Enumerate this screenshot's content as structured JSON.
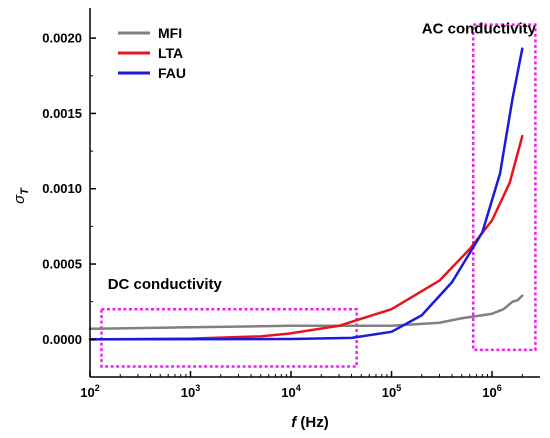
{
  "chart_data": {
    "type": "line",
    "xlabel": {
      "italic": "f",
      "rest": " (Hz)"
    },
    "ylabel": {
      "symbol": "σ",
      "subscript": "T"
    },
    "x_scale": "log",
    "xlim": [
      100,
      3000000
    ],
    "ylim": [
      -0.00025,
      0.0022
    ],
    "x_ticks": [
      {
        "base": "10",
        "exp": "2",
        "value": 100
      },
      {
        "base": "10",
        "exp": "3",
        "value": 1000
      },
      {
        "base": "10",
        "exp": "4",
        "value": 10000
      },
      {
        "base": "10",
        "exp": "5",
        "value": 100000
      },
      {
        "base": "10",
        "exp": "6",
        "value": 1000000
      }
    ],
    "y_ticks": [
      {
        "label": "0.0000",
        "value": 0.0
      },
      {
        "label": "0.0005",
        "value": 0.0005
      },
      {
        "label": "0.0010",
        "value": 0.001
      },
      {
        "label": "0.0015",
        "value": 0.0015
      },
      {
        "label": "0.0020",
        "value": 0.002
      }
    ],
    "legend_position": "top-left",
    "series": [
      {
        "name": "MFI",
        "color": "#808080",
        "points": [
          [
            100,
            7e-05
          ],
          [
            1000,
            8e-05
          ],
          [
            10000,
            9e-05
          ],
          [
            100000,
            9e-05
          ],
          [
            300000,
            0.00011
          ],
          [
            500000,
            0.00014
          ],
          [
            800000,
            0.00016
          ],
          [
            1000000,
            0.00017
          ],
          [
            1300000,
            0.0002
          ],
          [
            1600000,
            0.00025
          ],
          [
            1800000,
            0.00026
          ],
          [
            2000000,
            0.00029
          ]
        ]
      },
      {
        "name": "LTA",
        "color": "#e8141c",
        "points": [
          [
            100,
            0.0
          ],
          [
            1000,
            5e-06
          ],
          [
            5000,
            2e-05
          ],
          [
            10000,
            4e-05
          ],
          [
            30000,
            9e-05
          ],
          [
            100000,
            0.0002
          ],
          [
            300000,
            0.00039
          ],
          [
            600000,
            0.0006
          ],
          [
            1000000,
            0.00079
          ],
          [
            1500000,
            0.00104
          ],
          [
            2000000,
            0.00135
          ]
        ]
      },
      {
        "name": "FAU",
        "color": "#1a1adc",
        "points": [
          [
            100,
            0.0
          ],
          [
            10000,
            2e-06
          ],
          [
            40000,
            1e-05
          ],
          [
            100000,
            5e-05
          ],
          [
            200000,
            0.00016
          ],
          [
            400000,
            0.00038
          ],
          [
            800000,
            0.00071
          ],
          [
            1200000,
            0.0011
          ],
          [
            1600000,
            0.0016
          ],
          [
            2000000,
            0.00193
          ]
        ]
      }
    ],
    "annotations": [
      {
        "text": "DC conductivity",
        "anchor_x": 150,
        "anchor_y": 0.000335
      },
      {
        "text": "AC conductivity",
        "anchor_x": 200000,
        "anchor_y": 0.00203
      }
    ],
    "highlight_boxes": [
      {
        "x": [
          130,
          45000
        ],
        "y": [
          -0.00018,
          0.0002
        ],
        "color": "#ee22ee",
        "label": "dc-region"
      },
      {
        "x": [
          650000,
          2700000
        ],
        "y": [
          -7e-05,
          0.00209
        ],
        "color": "#ee22ee",
        "label": "ac-region"
      }
    ]
  }
}
